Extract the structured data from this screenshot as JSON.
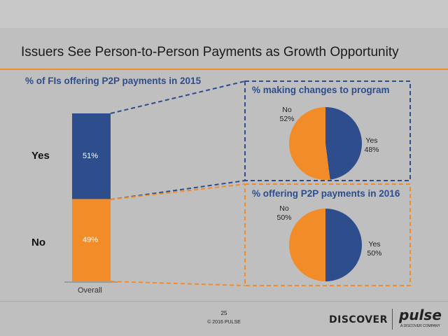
{
  "slide": {
    "title": "Issuers See Person-to-Person Payments as Growth Opportunity",
    "page_number": "25",
    "copyright": "© 2016 PULSE",
    "logos": {
      "discover": "DISCOVER",
      "pulse": "pulse",
      "pulse_tagline": "A DISCOVER COMPANY"
    }
  },
  "colors": {
    "yes": "#2e4d8c",
    "no": "#f28c28",
    "accent_line": "#f28c28"
  },
  "chart_data": [
    {
      "type": "bar",
      "title": "% of FIs offering P2P payments in 2015",
      "categories": [
        "Overall"
      ],
      "stacked": true,
      "series": [
        {
          "name": "Yes",
          "values": [
            51
          ],
          "label": "51%"
        },
        {
          "name": "No",
          "values": [
            49
          ],
          "label": "49%"
        }
      ],
      "ylim": [
        0,
        100
      ]
    },
    {
      "type": "pie",
      "title": "% making changes to program",
      "slices": [
        {
          "name": "Yes",
          "value": 48,
          "label": "48%"
        },
        {
          "name": "No",
          "value": 52,
          "label": "52%"
        }
      ]
    },
    {
      "type": "pie",
      "title": "% offering P2P payments in 2016",
      "slices": [
        {
          "name": "Yes",
          "value": 50,
          "label": "50%"
        },
        {
          "name": "No",
          "value": 50,
          "label": "50%"
        }
      ]
    }
  ]
}
